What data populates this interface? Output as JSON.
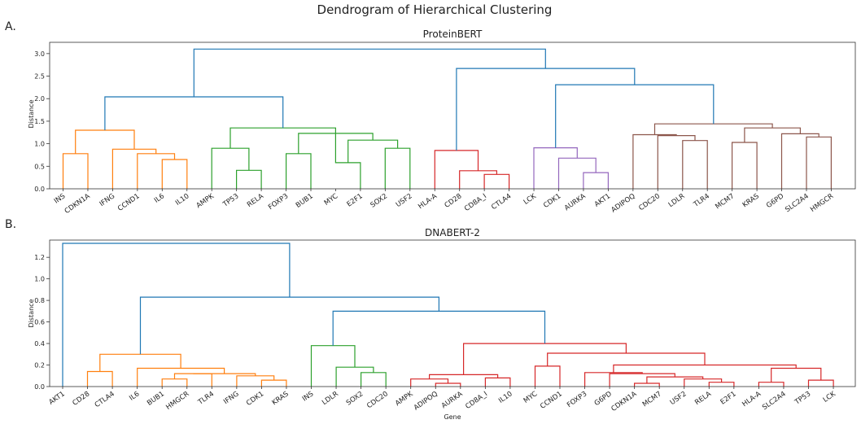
{
  "figure": {
    "title": "Dendrogram of Hierarchical Clustering"
  },
  "colors": {
    "above": "#1f77b4",
    "orange": "#ff7f0e",
    "green": "#2ca02c",
    "red": "#d62728",
    "purple": "#9467bd",
    "brown": "#8c564b"
  },
  "chart_data": [
    {
      "type": "dendrogram",
      "panel_label": "A.",
      "title": "ProteinBERT",
      "xlabel": "",
      "ylabel": "Distance",
      "ylim": [
        0,
        3.25
      ],
      "yticks": [
        0.0,
        0.5,
        1.0,
        1.5,
        2.0,
        2.5,
        3.0
      ],
      "leaves": [
        "INS",
        "CDKN1A",
        "IFNG",
        "CCND1",
        "IL6",
        "IL10",
        "AMPK",
        "TP53",
        "RELA",
        "FOXP3",
        "BUB1",
        "MYC",
        "E2F1",
        "SOX2",
        "USF2",
        "HLA-A",
        "CD28",
        "CD8A_I",
        "CTLA4",
        "LCK",
        "CDK1",
        "AURKA",
        "AKT1",
        "ADIPOQ",
        "CDC20",
        "LDLR",
        "TLR4",
        "MCM7",
        "KRAS",
        "G6PD",
        "SLC2A4",
        "HMGCR"
      ],
      "links": [
        {
          "a": 0,
          "b": 1,
          "height": 0.78,
          "color": "orange"
        },
        {
          "a": 4,
          "b": 5,
          "height": 0.65,
          "color": "orange"
        },
        {
          "a": 3,
          "b": 4.5,
          "height": 0.78,
          "color": "orange"
        },
        {
          "a": 2,
          "b": 3.75,
          "height": 0.88,
          "color": "orange"
        },
        {
          "a": 0.5,
          "b": 2.875,
          "height": 1.3,
          "color": "orange"
        },
        {
          "a": 7,
          "b": 8,
          "height": 0.41,
          "color": "green"
        },
        {
          "a": 6,
          "b": 7.5,
          "height": 0.9,
          "color": "green"
        },
        {
          "a": 9,
          "b": 10,
          "height": 0.78,
          "color": "green"
        },
        {
          "a": 11,
          "b": 12,
          "height": 0.58,
          "color": "green"
        },
        {
          "a": 13,
          "b": 14,
          "height": 0.9,
          "color": "green"
        },
        {
          "a": 11.5,
          "b": 13.5,
          "height": 1.08,
          "color": "green"
        },
        {
          "a": 9.5,
          "b": 12.5,
          "height": 1.23,
          "color": "green"
        },
        {
          "a": 6.75,
          "b": 11,
          "height": 1.35,
          "color": "green"
        },
        {
          "a": 17,
          "b": 18,
          "height": 0.32,
          "color": "red"
        },
        {
          "a": 16,
          "b": 17.5,
          "height": 0.4,
          "color": "red"
        },
        {
          "a": 15,
          "b": 16.75,
          "height": 0.85,
          "color": "red"
        },
        {
          "a": 21,
          "b": 22,
          "height": 0.36,
          "color": "purple"
        },
        {
          "a": 20,
          "b": 21.5,
          "height": 0.68,
          "color": "purple"
        },
        {
          "a": 19,
          "b": 20.75,
          "height": 0.91,
          "color": "purple"
        },
        {
          "a": 25,
          "b": 26,
          "height": 1.07,
          "color": "brown"
        },
        {
          "a": 24,
          "b": 25.5,
          "height": 1.18,
          "color": "brown"
        },
        {
          "a": 23,
          "b": 24.75,
          "height": 1.2,
          "color": "brown"
        },
        {
          "a": 27,
          "b": 28,
          "height": 1.03,
          "color": "brown"
        },
        {
          "a": 30,
          "b": 31,
          "height": 1.15,
          "color": "brown"
        },
        {
          "a": 29,
          "b": 30.5,
          "height": 1.22,
          "color": "brown"
        },
        {
          "a": 27.5,
          "b": 29.75,
          "height": 1.35,
          "color": "brown"
        },
        {
          "a": 23.875,
          "b": 28.625,
          "height": 1.44,
          "color": "brown"
        },
        {
          "a": 1.6875,
          "b": 8.875,
          "height": 2.04,
          "color": "above"
        },
        {
          "a": 19.875,
          "b": 26.25,
          "height": 2.31,
          "color": "above"
        },
        {
          "a": 15.875,
          "b": 23.0625,
          "height": 2.67,
          "color": "above"
        },
        {
          "a": 5.28125,
          "b": 19.46875,
          "height": 3.1,
          "color": "above"
        }
      ]
    },
    {
      "type": "dendrogram",
      "panel_label": "B.",
      "title": "DNABERT-2",
      "xlabel": "Gene",
      "ylabel": "Distance",
      "ylim": [
        0,
        1.36
      ],
      "yticks": [
        0.0,
        0.2,
        0.4,
        0.6,
        0.8,
        1.0,
        1.2
      ],
      "leaves": [
        "AKT1",
        "CD28",
        "CTLA4",
        "IL6",
        "BUB1",
        "HMGCR",
        "TLR4",
        "IFNG",
        "CDK1",
        "KRAS",
        "INS",
        "LDLR",
        "SOX2",
        "CDC20",
        "AMPK",
        "ADIPOQ",
        "AURKA",
        "CD8A_I",
        "IL10",
        "MYC",
        "CCND1",
        "FOXP3",
        "G6PD",
        "CDKN1A",
        "MCM7",
        "USF2",
        "RELA",
        "E2F1",
        "HLA-A",
        "SLC2A4",
        "TP53",
        "LCK"
      ],
      "links": [
        {
          "a": 1,
          "b": 2,
          "height": 0.14,
          "color": "orange"
        },
        {
          "a": 4,
          "b": 5,
          "height": 0.07,
          "color": "orange"
        },
        {
          "a": 4.5,
          "b": 6,
          "height": 0.12,
          "color": "orange"
        },
        {
          "a": 8,
          "b": 9,
          "height": 0.06,
          "color": "orange"
        },
        {
          "a": 7,
          "b": 8.5,
          "height": 0.1,
          "color": "orange"
        },
        {
          "a": 5.25,
          "b": 7.75,
          "height": 0.12,
          "color": "orange"
        },
        {
          "a": 3,
          "b": 6.5,
          "height": 0.17,
          "color": "orange"
        },
        {
          "a": 1.5,
          "b": 4.75,
          "height": 0.3,
          "color": "orange"
        },
        {
          "a": 12,
          "b": 13,
          "height": 0.13,
          "color": "green"
        },
        {
          "a": 11,
          "b": 12.5,
          "height": 0.18,
          "color": "green"
        },
        {
          "a": 10,
          "b": 11.75,
          "height": 0.38,
          "color": "green"
        },
        {
          "a": 15,
          "b": 16,
          "height": 0.03,
          "color": "red"
        },
        {
          "a": 14,
          "b": 15.5,
          "height": 0.07,
          "color": "red"
        },
        {
          "a": 17,
          "b": 18,
          "height": 0.08,
          "color": "red"
        },
        {
          "a": 14.75,
          "b": 17.5,
          "height": 0.11,
          "color": "red"
        },
        {
          "a": 23,
          "b": 24,
          "height": 0.03,
          "color": "red"
        },
        {
          "a": 26,
          "b": 27,
          "height": 0.04,
          "color": "red"
        },
        {
          "a": 25,
          "b": 26.5,
          "height": 0.07,
          "color": "red"
        },
        {
          "a": 23.5,
          "b": 25.75,
          "height": 0.09,
          "color": "red"
        },
        {
          "a": 22,
          "b": 24.625,
          "height": 0.12,
          "color": "red"
        },
        {
          "a": 21,
          "b": 23.3125,
          "height": 0.13,
          "color": "red"
        },
        {
          "a": 30,
          "b": 31,
          "height": 0.06,
          "color": "red"
        },
        {
          "a": 28,
          "b": 29,
          "height": 0.04,
          "color": "red"
        },
        {
          "a": 28.5,
          "b": 30.5,
          "height": 0.17,
          "color": "red"
        },
        {
          "a": 22.15625,
          "b": 29.5,
          "height": 0.2,
          "color": "red"
        },
        {
          "a": 19,
          "b": 20,
          "height": 0.19,
          "color": "red"
        },
        {
          "a": 19.5,
          "b": 25.828125,
          "height": 0.31,
          "color": "red"
        },
        {
          "a": 16.125,
          "b": 22.6640625,
          "height": 0.4,
          "color": "red"
        },
        {
          "a": 10.875,
          "b": 19.39453125,
          "height": 0.7,
          "color": "above"
        },
        {
          "a": 3.125,
          "b": 15.134765625,
          "height": 0.83,
          "color": "above"
        },
        {
          "a": 0,
          "b": 9.1298828125,
          "height": 1.33,
          "color": "above"
        }
      ]
    }
  ]
}
